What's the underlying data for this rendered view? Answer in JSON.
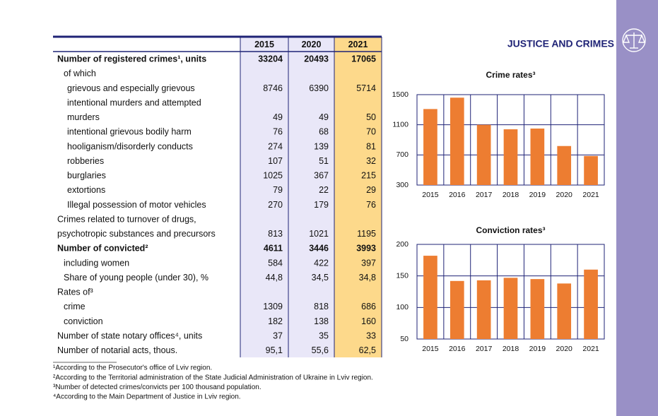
{
  "header": {
    "title": "JUSTICE AND CRIMES"
  },
  "table": {
    "columns": [
      "2015",
      "2020",
      "2021"
    ],
    "rows": [
      {
        "label": "Number of registered crimes¹, units",
        "values": [
          "33204",
          "20493",
          "17065"
        ],
        "bold": true,
        "indent": 0
      },
      {
        "label": "of which",
        "indent": 1
      },
      {
        "label": "grievous and especially grievous",
        "values": [
          "8746",
          "6390",
          "5714"
        ],
        "indent": 2
      },
      {
        "label": "intentional murders and attempted",
        "indent": 2
      },
      {
        "label": "murders",
        "values": [
          "49",
          "49",
          "50"
        ],
        "indent": 2
      },
      {
        "label": "intentional grievous bodily harm",
        "values": [
          "76",
          "68",
          "70"
        ],
        "indent": 2
      },
      {
        "label": "hooliganism/disorderly conducts",
        "values": [
          "274",
          "139",
          "81"
        ],
        "indent": 2
      },
      {
        "label": "robberies",
        "values": [
          "107",
          "51",
          "32"
        ],
        "indent": 2
      },
      {
        "label": "burglaries",
        "values": [
          "1025",
          "367",
          "215"
        ],
        "indent": 2
      },
      {
        "label": "extortions",
        "values": [
          "79",
          "22",
          "29"
        ],
        "indent": 2
      },
      {
        "label": "Illegal possession of motor vehicles",
        "values": [
          "270",
          "179",
          "76"
        ],
        "indent": 2
      },
      {
        "label": "Crimes related to turnover of drugs,",
        "indent": 0
      },
      {
        "label": "psychotropic substances and precursors",
        "values": [
          "813",
          "1021",
          "1195"
        ],
        "indent": 0
      },
      {
        "label": "Number of convicted²",
        "values": [
          "4611",
          "3446",
          "3993"
        ],
        "bold": true,
        "indent": 0
      },
      {
        "label": "including women",
        "values": [
          "584",
          "422",
          "397"
        ],
        "indent": 1
      },
      {
        "label": "Share of young people (under 30), %",
        "values": [
          "44,8",
          "34,5",
          "34,8"
        ],
        "indent": 1
      },
      {
        "label": "Rates of³",
        "indent": 0
      },
      {
        "label": "crime",
        "values": [
          "1309",
          "818",
          "686"
        ],
        "indent": 1
      },
      {
        "label": "conviction",
        "values": [
          "182",
          "138",
          "160"
        ],
        "indent": 1
      },
      {
        "label": "Number of state notary offices⁴, units",
        "values": [
          "37",
          "35",
          "33"
        ],
        "indent": 0
      },
      {
        "label": "Number of notarial acts, thous.",
        "values": [
          "95,1",
          "55,6",
          "62,5"
        ],
        "indent": 0
      }
    ]
  },
  "chart_data": [
    {
      "type": "bar",
      "title": "Crime rates³",
      "categories": [
        "2015",
        "2016",
        "2017",
        "2018",
        "2019",
        "2020",
        "2021"
      ],
      "values": [
        1309,
        1460,
        1100,
        1040,
        1050,
        818,
        686
      ],
      "color": "#ed7d31",
      "ylim": [
        300,
        1500
      ],
      "yticks": [
        300,
        700,
        1100,
        1500
      ],
      "grid": true
    },
    {
      "type": "bar",
      "title": "Conviction rates³",
      "categories": [
        "2015",
        "2016",
        "2017",
        "2018",
        "2019",
        "2020",
        "2021"
      ],
      "values": [
        182,
        142,
        143,
        147,
        145,
        138,
        160
      ],
      "color": "#ed7d31",
      "ylim": [
        50,
        200
      ],
      "yticks": [
        50,
        100,
        150,
        200
      ],
      "grid": true
    }
  ],
  "footnotes": [
    "¹According to the Prosecutor's office of Lviv region.",
    "²According to the Territorial administration of the State Judicial Administration of Ukraine in Lviv region.",
    "³Number of detected crimes/convicts per 100 thousand population.",
    "⁴According to the Main Department of Justice in Lviv region."
  ]
}
